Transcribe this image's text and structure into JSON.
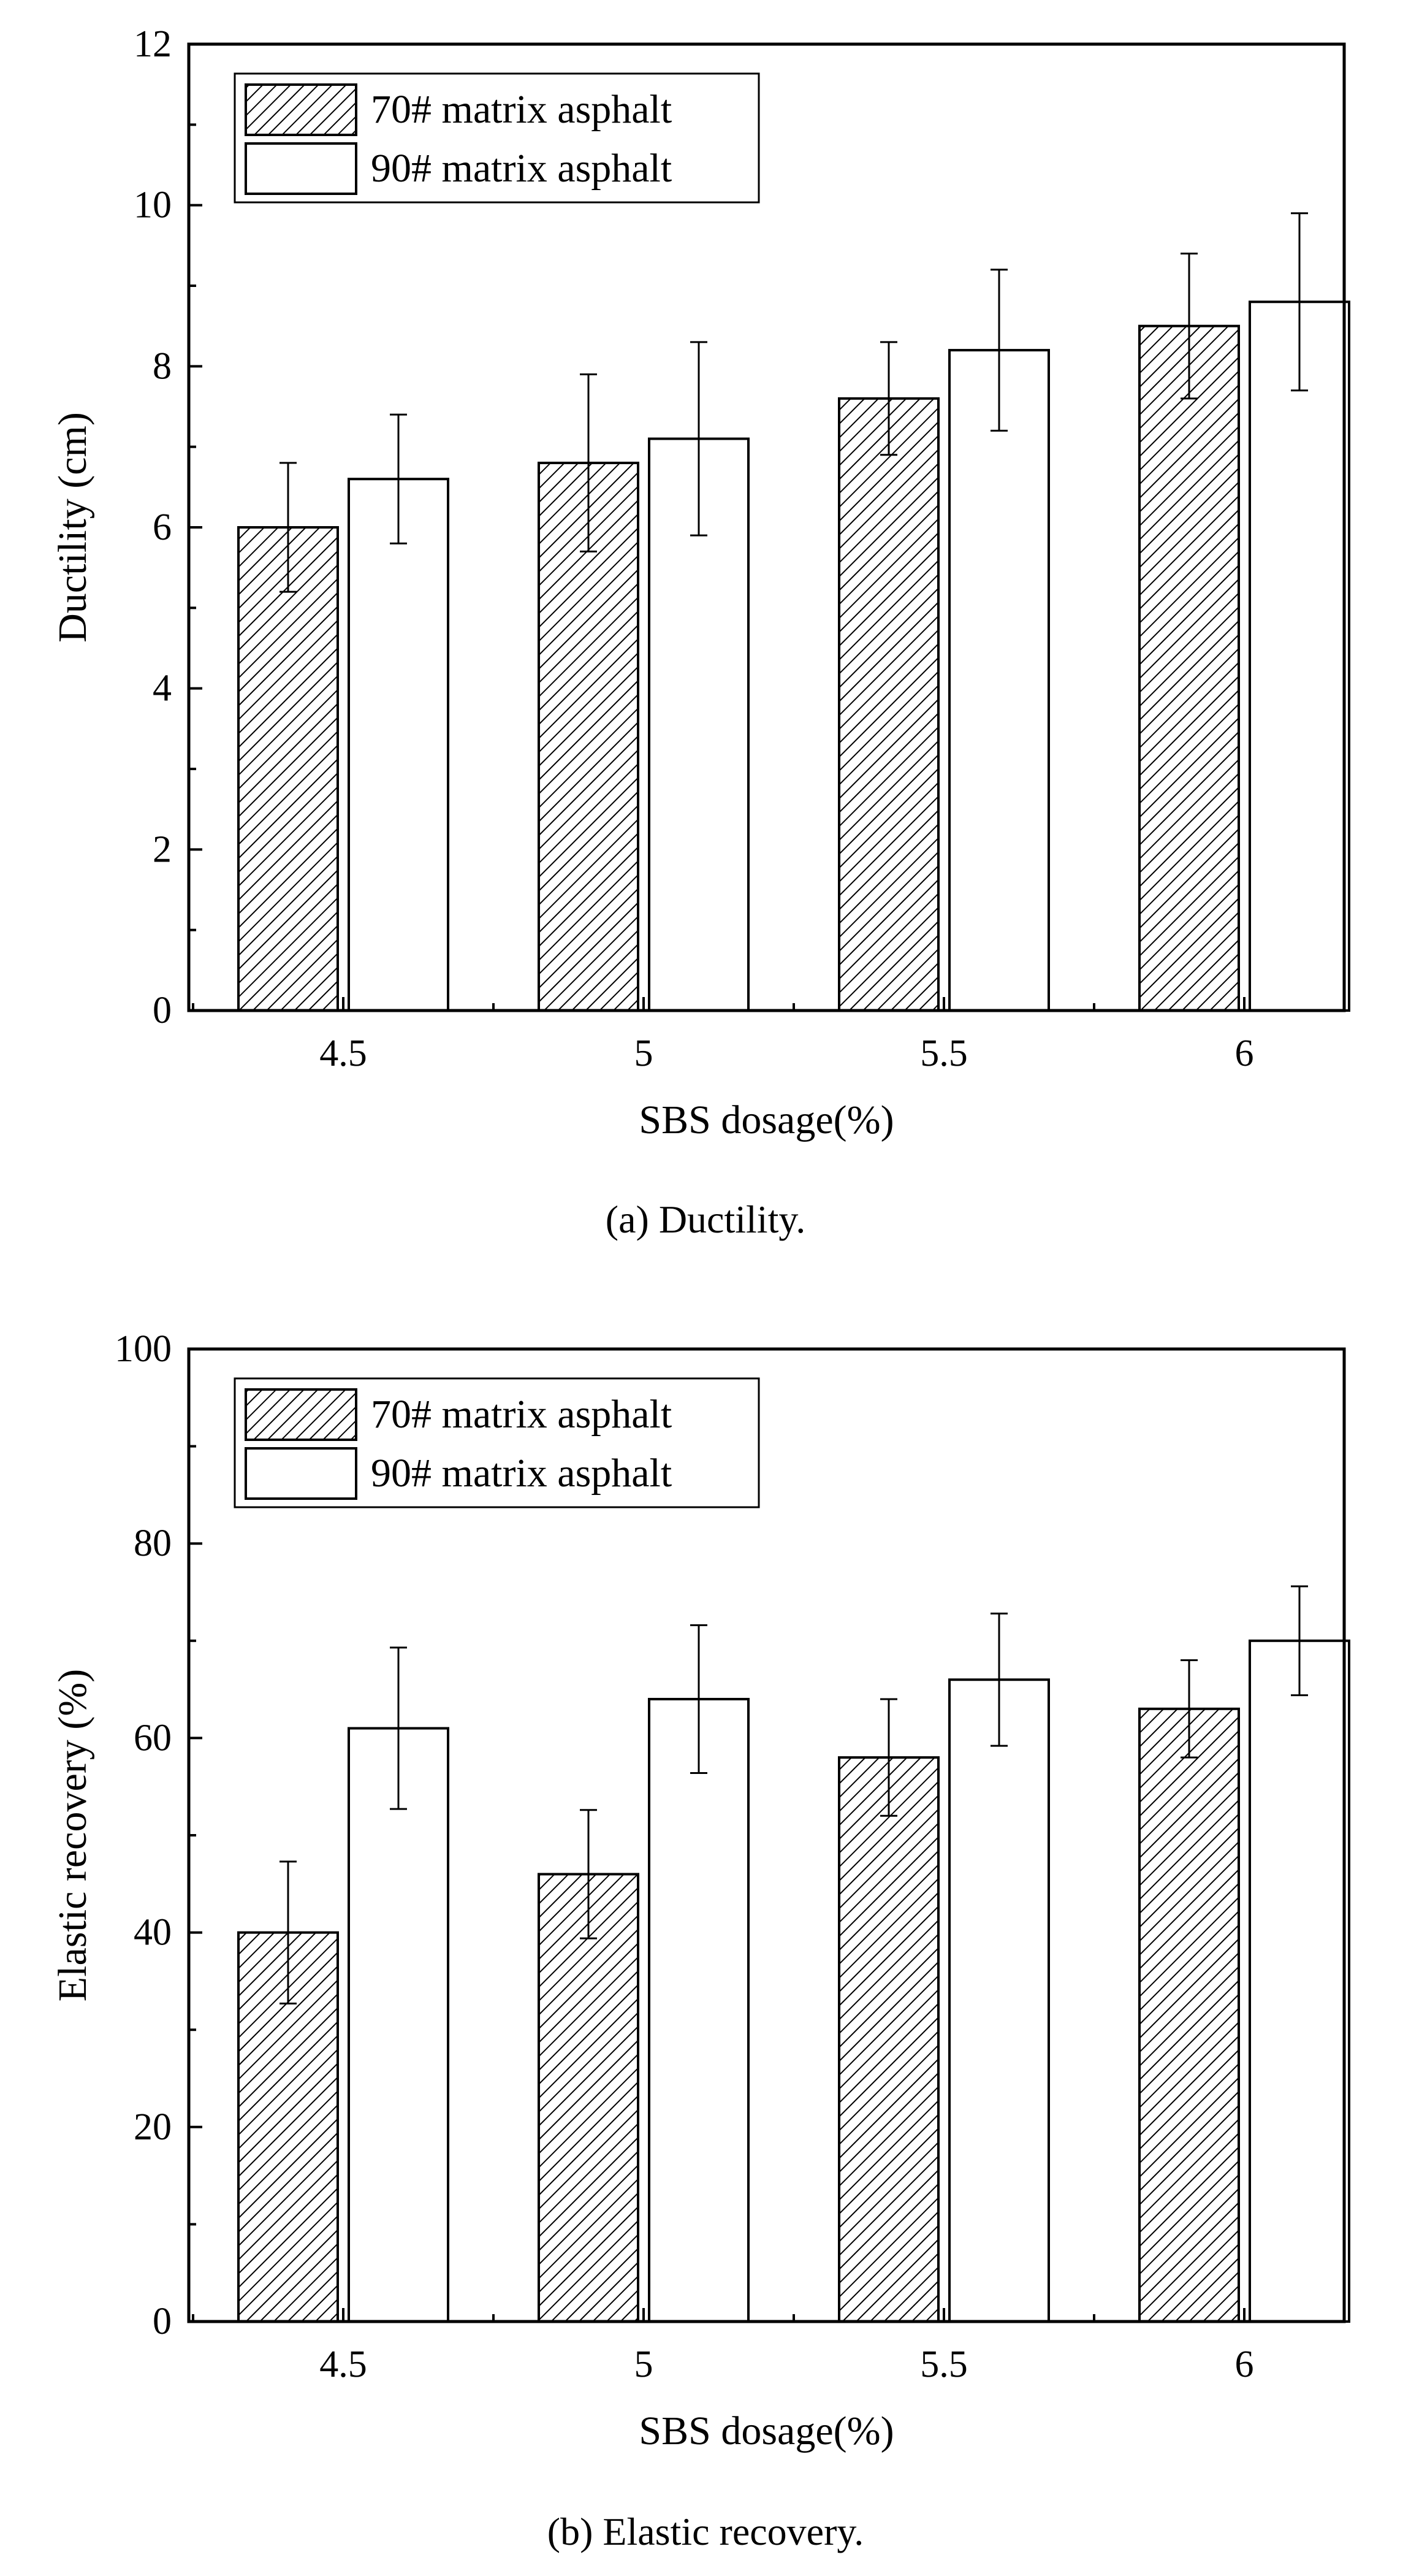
{
  "chart_data": [
    {
      "id": "ductility",
      "type": "bar",
      "caption": "(a) Ductility.",
      "xlabel": "SBS dosage(%)",
      "ylabel": "Ductility (cm)",
      "categories": [
        "4.5",
        "5",
        "5.5",
        "6"
      ],
      "ylim": [
        0,
        12
      ],
      "yticks": [
        0,
        2,
        4,
        6,
        8,
        10,
        12
      ],
      "ytick_labels": [
        "0",
        "2",
        "4",
        "6",
        "8",
        "10",
        "12"
      ],
      "grid": false,
      "legend_position": "top-left",
      "series": [
        {
          "name": "70# matrix asphalt",
          "pattern": "hatched",
          "values": [
            6.0,
            6.8,
            7.6,
            8.5
          ],
          "error": [
            [
              5.2,
              6.8
            ],
            [
              5.7,
              7.9
            ],
            [
              6.9,
              8.3
            ],
            [
              7.6,
              9.4
            ]
          ]
        },
        {
          "name": "90# matrix asphalt",
          "pattern": "white",
          "values": [
            6.6,
            7.1,
            8.2,
            8.8
          ],
          "error": [
            [
              5.8,
              7.4
            ],
            [
              5.9,
              8.3
            ],
            [
              7.2,
              9.2
            ],
            [
              7.7,
              9.9
            ]
          ]
        }
      ]
    },
    {
      "id": "elastic-recovery",
      "type": "bar",
      "caption": "(b) Elastic recovery.",
      "xlabel": "SBS dosage(%)",
      "ylabel": "Elastic recovery (%)",
      "categories": [
        "4.5",
        "5",
        "5.5",
        "6"
      ],
      "ylim": [
        0,
        100
      ],
      "yticks": [
        0,
        20,
        40,
        60,
        80,
        100
      ],
      "ytick_labels": [
        "0",
        "20",
        "40",
        "60",
        "80",
        "100"
      ],
      "grid": false,
      "legend_position": "top-left",
      "series": [
        {
          "name": "70# matrix asphalt",
          "pattern": "hatched",
          "values": [
            40,
            46,
            58,
            63
          ],
          "error": [
            [
              32.7,
              47.3
            ],
            [
              39.4,
              52.6
            ],
            [
              52.0,
              64.0
            ],
            [
              58.0,
              68.0
            ]
          ]
        },
        {
          "name": "90# matrix asphalt",
          "pattern": "white",
          "values": [
            61,
            64,
            66,
            70
          ],
          "error": [
            [
              52.7,
              69.3
            ],
            [
              56.4,
              71.6
            ],
            [
              59.2,
              72.8
            ],
            [
              64.4,
              75.6
            ]
          ]
        }
      ]
    }
  ],
  "colors": {
    "ink": "#000000",
    "paper": "#ffffff"
  }
}
